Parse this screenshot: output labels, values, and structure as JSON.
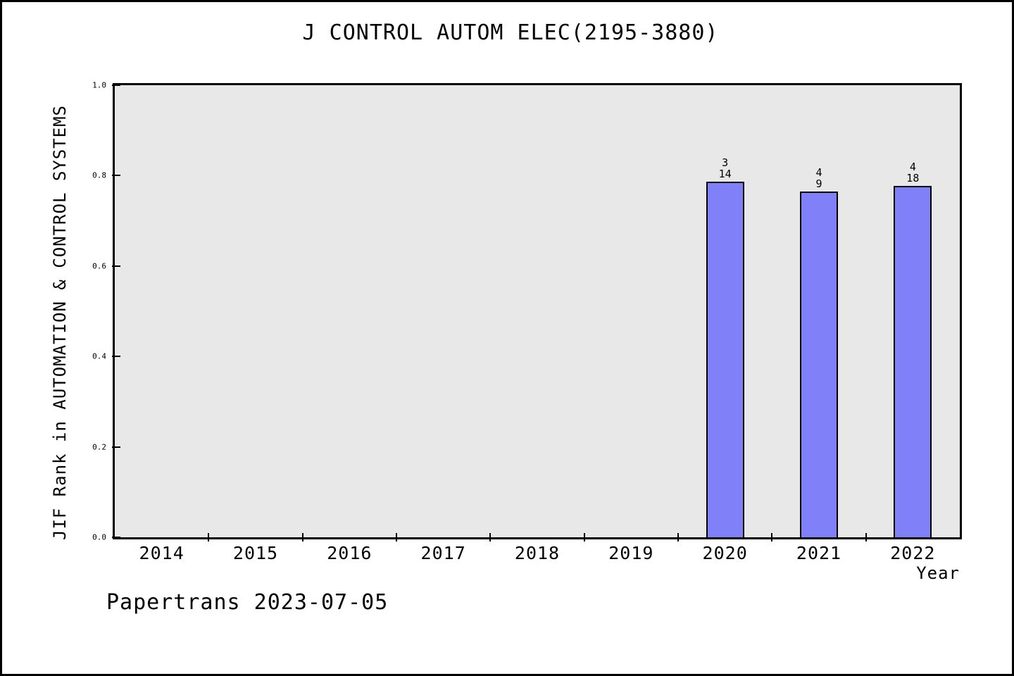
{
  "page": {
    "footer": "Papertrans 2023-07-05"
  },
  "chart_data": {
    "type": "bar",
    "title": "J CONTROL AUTOM ELEC(2195-3880)",
    "xlabel": "Year",
    "ylabel": "JIF Rank in AUTOMATION & CONTROL SYSTEMS",
    "categories": [
      "2014",
      "2015",
      "2016",
      "2017",
      "2018",
      "2019",
      "2020",
      "2021",
      "2022"
    ],
    "values": [
      null,
      null,
      null,
      null,
      null,
      null,
      0.786,
      0.765,
      0.778
    ],
    "bar_labels": [
      null,
      null,
      null,
      null,
      null,
      null,
      {
        "top": "3",
        "bottom": "14"
      },
      {
        "top": "4",
        "bottom": "9"
      },
      {
        "top": "4",
        "bottom": "18"
      }
    ],
    "ylim": [
      0.0,
      1.0
    ],
    "yticks": [
      "0.0",
      "0.2",
      "0.4",
      "0.6",
      "0.8",
      "1.0"
    ],
    "grid": false,
    "legend": null,
    "colors": {
      "bar_fill": "#8080f8",
      "bar_edge": "#000000",
      "plot_bg": "#e8e8e8",
      "page_bg": "#ffffff",
      "text": "#000000"
    }
  }
}
